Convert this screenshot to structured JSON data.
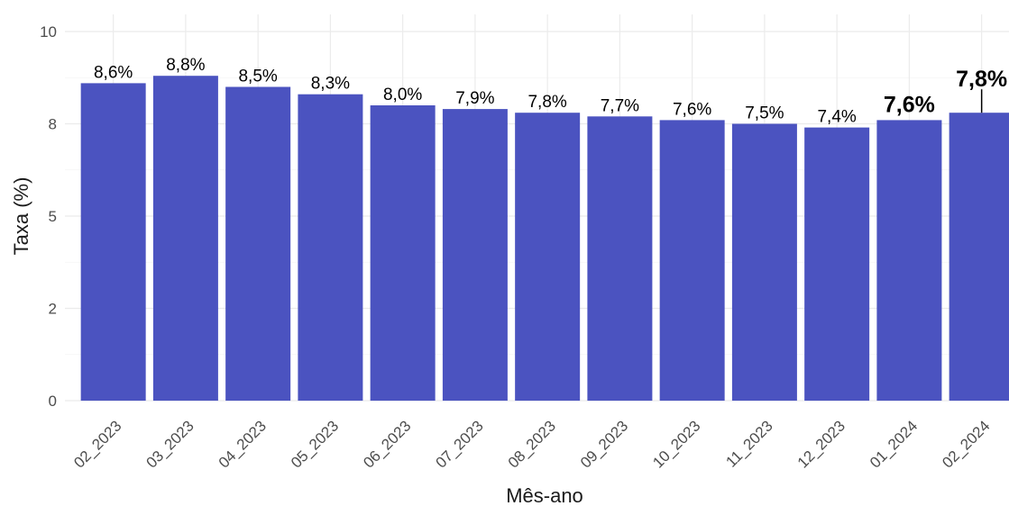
{
  "chart_data": {
    "type": "bar",
    "xlabel": "Mês-ano",
    "ylabel": "Taxa (%)",
    "ylim": [
      0,
      10
    ],
    "yticks": [
      0,
      2.5,
      5,
      7.5,
      10
    ],
    "ytick_labels": [
      "0",
      "2",
      "5",
      "8",
      "10"
    ],
    "grid": true,
    "bar_color": "#4b53c0",
    "categories": [
      "02_2023",
      "03_2023",
      "04_2023",
      "05_2023",
      "06_2023",
      "07_2023",
      "08_2023",
      "09_2023",
      "10_2023",
      "11_2023",
      "12_2023",
      "01_2024",
      "02_2024"
    ],
    "values": [
      8.6,
      8.8,
      8.5,
      8.3,
      8.0,
      7.9,
      7.8,
      7.7,
      7.6,
      7.5,
      7.4,
      7.6,
      7.8
    ],
    "value_labels": [
      "8,6%",
      "8,8%",
      "8,5%",
      "8,3%",
      "8,0%",
      "7,9%",
      "7,8%",
      "7,7%",
      "7,6%",
      "7,5%",
      "7,4%",
      "7,6%",
      "7,8%"
    ],
    "highlighted": [
      11,
      12
    ]
  }
}
